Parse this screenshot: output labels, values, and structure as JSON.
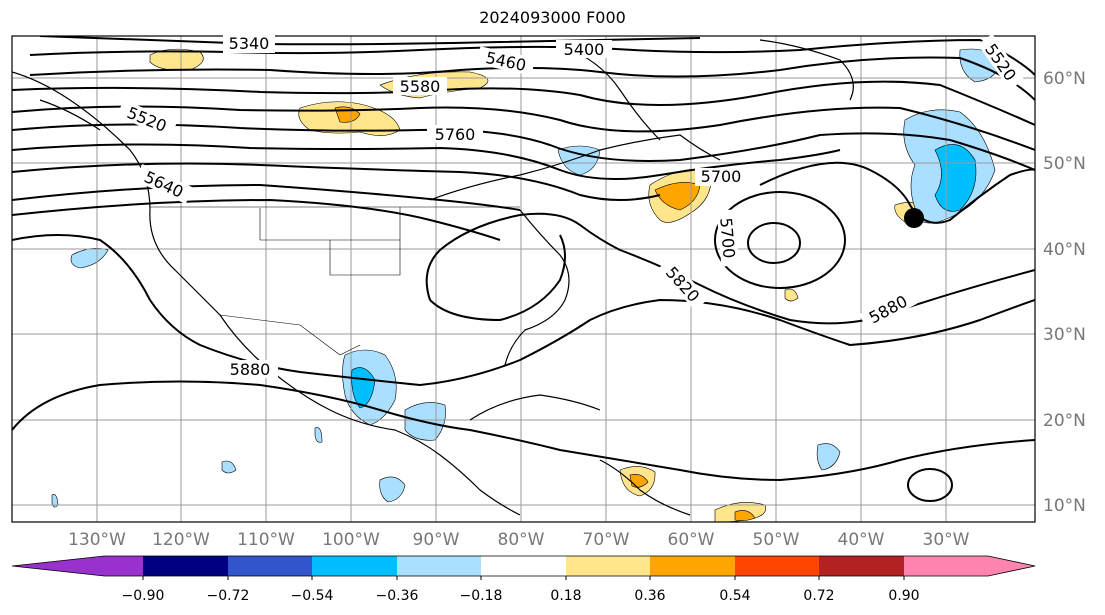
{
  "title": "2024093000 F000",
  "map": {
    "lon_labels": [
      "130°W",
      "120°W",
      "110°W",
      "100°W",
      "90°W",
      "80°W",
      "70°W",
      "60°W",
      "50°W",
      "40°W",
      "30°W"
    ],
    "lat_labels": [
      "60°N",
      "50°N",
      "40°N",
      "30°N",
      "20°N",
      "10°N"
    ],
    "contour_labels": [
      "5340",
      "5400",
      "5460",
      "5580",
      "5520",
      "5760",
      "5640",
      "5700",
      "5700",
      "5820",
      "5880",
      "5880",
      "5520"
    ],
    "storm_marker": "filled-circle"
  },
  "colorbar": {
    "ticks": [
      "−0.90",
      "−0.72",
      "−0.54",
      "−0.36",
      "−0.18",
      "0.18",
      "0.36",
      "0.54",
      "0.72",
      "0.90"
    ],
    "colors": [
      "#9932cc",
      "#000080",
      "#3355cc",
      "#00bfff",
      "#aadfff",
      "#ffffff",
      "#ffe68c",
      "#ffa500",
      "#ff4500",
      "#b22222",
      "#ff85b0"
    ],
    "min_extend_color": "#9932cc",
    "max_extend_color": "#ff85b0"
  }
}
